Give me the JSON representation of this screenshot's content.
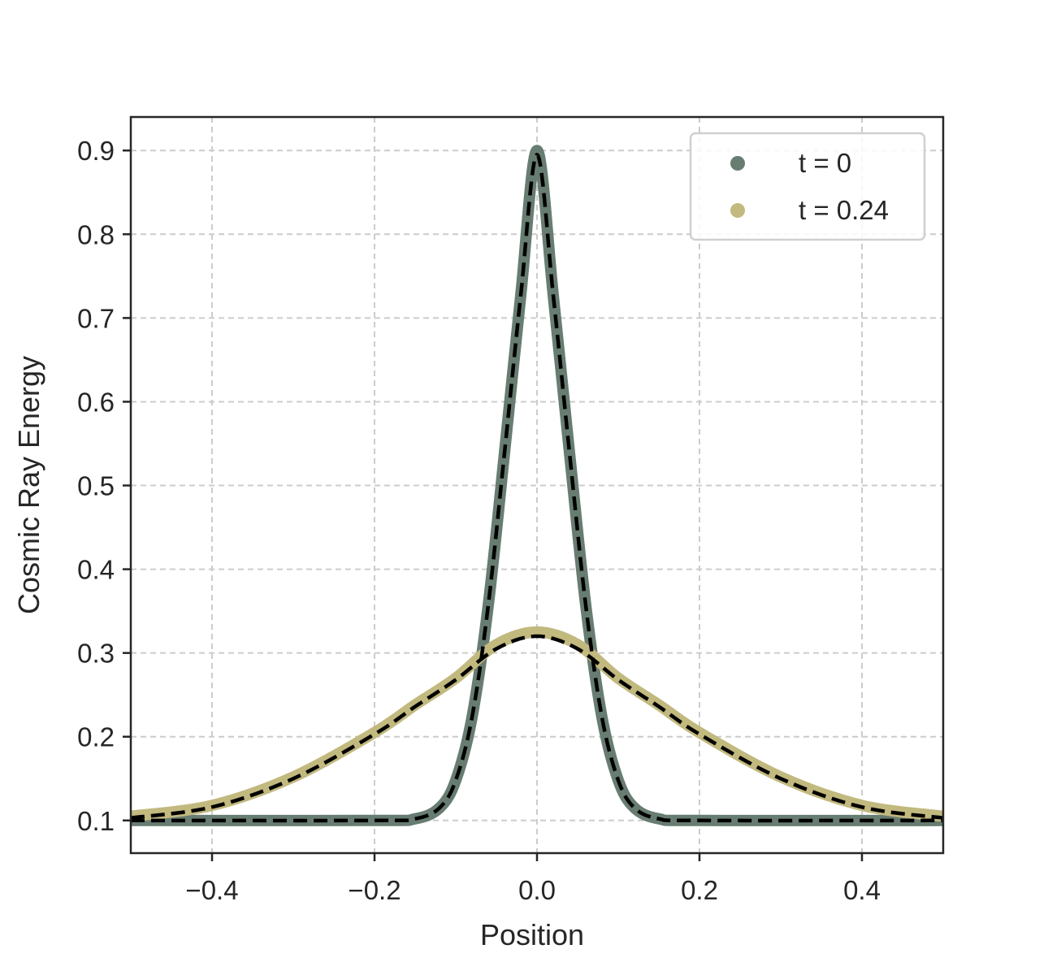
{
  "chart_data": {
    "type": "line",
    "title": "",
    "xlabel": "Position",
    "ylabel": "Cosmic Ray Energy",
    "xlim": [
      -0.5,
      0.5
    ],
    "ylim": [
      0.061,
      0.94
    ],
    "xticks": [
      -0.4,
      -0.2,
      0.0,
      0.2,
      0.4
    ],
    "xtick_labels": [
      "−0.4",
      "−0.2",
      "0.0",
      "0.2",
      "0.4"
    ],
    "yticks": [
      0.1,
      0.2,
      0.3,
      0.4,
      0.5,
      0.6,
      0.7,
      0.8,
      0.9
    ],
    "ytick_labels": [
      "0.1",
      "0.2",
      "0.3",
      "0.4",
      "0.5",
      "0.6",
      "0.7",
      "0.8",
      "0.9"
    ],
    "grid": true,
    "legend_position": "top-right",
    "series": [
      {
        "name": "t = 0",
        "color": "#687d72",
        "x": [
          -0.5,
          -0.2,
          -0.15,
          -0.12,
          -0.1,
          -0.08,
          -0.06,
          -0.04,
          -0.02,
          0.0,
          0.02,
          0.04,
          0.06,
          0.08,
          0.1,
          0.12,
          0.15,
          0.2,
          0.5
        ],
        "y": [
          0.1,
          0.1,
          0.102,
          0.115,
          0.148,
          0.223,
          0.357,
          0.539,
          0.727,
          0.9,
          0.727,
          0.539,
          0.357,
          0.223,
          0.148,
          0.115,
          0.102,
          0.1,
          0.1
        ]
      },
      {
        "name": "t = 0.24",
        "color": "#c2b97f",
        "x": [
          -0.5,
          -0.4,
          -0.3,
          -0.2,
          -0.15,
          -0.1,
          -0.05,
          0.0,
          0.05,
          0.1,
          0.15,
          0.2,
          0.3,
          0.4,
          0.5
        ],
        "y": [
          0.105,
          0.118,
          0.152,
          0.205,
          0.238,
          0.27,
          0.31,
          0.325,
          0.31,
          0.27,
          0.238,
          0.205,
          0.152,
          0.118,
          0.105
        ]
      },
      {
        "name": "",
        "color": "#000000",
        "dashed": true,
        "x": [
          -0.5,
          -0.2,
          -0.15,
          -0.12,
          -0.1,
          -0.08,
          -0.06,
          -0.04,
          -0.02,
          0.0,
          0.02,
          0.04,
          0.06,
          0.08,
          0.1,
          0.12,
          0.15,
          0.2,
          0.5
        ],
        "y": [
          0.1,
          0.1,
          0.102,
          0.115,
          0.148,
          0.223,
          0.357,
          0.539,
          0.727,
          0.895,
          0.727,
          0.539,
          0.357,
          0.223,
          0.148,
          0.115,
          0.102,
          0.1,
          0.1
        ]
      },
      {
        "name": "",
        "color": "#000000",
        "dashed": true,
        "x": [
          -0.5,
          -0.4,
          -0.3,
          -0.2,
          -0.15,
          -0.1,
          -0.05,
          0.0,
          0.05,
          0.1,
          0.15,
          0.2,
          0.3,
          0.4,
          0.5
        ],
        "y": [
          0.103,
          0.116,
          0.15,
          0.203,
          0.236,
          0.268,
          0.305,
          0.32,
          0.305,
          0.268,
          0.236,
          0.203,
          0.15,
          0.116,
          0.103
        ]
      }
    ],
    "legend": [
      {
        "label": "t = 0",
        "color": "#687d72"
      },
      {
        "label": "t = 0.24",
        "color": "#c2b97f"
      }
    ]
  }
}
